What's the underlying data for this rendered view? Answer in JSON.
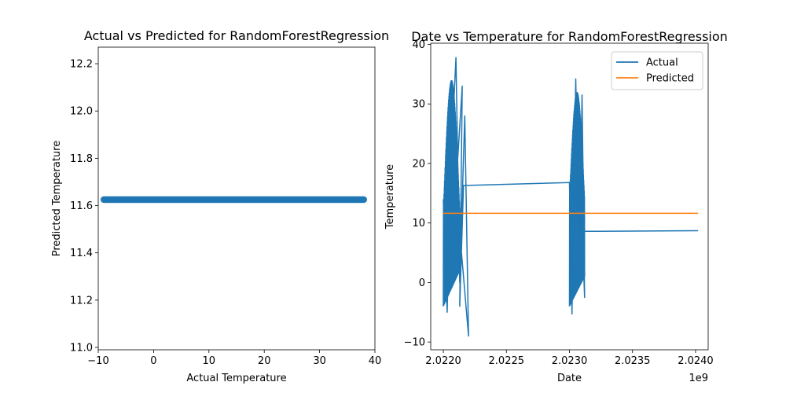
{
  "chart_data": [
    {
      "type": "scatter",
      "title": "Actual vs Predicted for RandomForestRegression",
      "xlabel": "Actual Temperature",
      "ylabel": "Predicted Temperature",
      "xlim": [
        -10,
        40
      ],
      "ylim": [
        10.99,
        12.27
      ],
      "xticks": [
        -10,
        0,
        10,
        20,
        30,
        40
      ],
      "xtick_labels": [
        "−10",
        "0",
        "10",
        "20",
        "30",
        "40"
      ],
      "yticks": [
        11.0,
        11.2,
        11.4,
        11.6,
        11.8,
        12.0,
        12.2
      ],
      "ytick_labels": [
        "11.0",
        "11.2",
        "11.4",
        "11.6",
        "11.8",
        "12.0",
        "12.2"
      ],
      "color": "#1f77b4",
      "predicted_value": 11.625,
      "actual_min": -9,
      "actual_max": 38
    },
    {
      "type": "line",
      "title": "Date vs Temperature for RandomForestRegression",
      "xlabel": "Date",
      "ylabel": "Temperature",
      "x_offset_label": "1e9",
      "xlim": [
        2.0219,
        2.0241
      ],
      "ylim": [
        -11.3,
        40.2
      ],
      "xticks": [
        2.022,
        2.0225,
        2.023,
        2.0235,
        2.024
      ],
      "xtick_labels": [
        "2.0220",
        "2.0225",
        "2.0230",
        "2.0235",
        "2.0240"
      ],
      "yticks": [
        -10,
        0,
        10,
        20,
        30,
        40
      ],
      "ytick_labels": [
        "−10",
        "0",
        "10",
        "20",
        "30",
        "40"
      ],
      "legend": {
        "location": "upper right",
        "entries": [
          "Actual",
          "Predicted"
        ]
      },
      "series": [
        {
          "name": "Actual",
          "color": "#1f77b4",
          "x": [
            2.022,
            2.02203,
            2.02206,
            2.0221,
            2.02213,
            2.02217,
            2.0222,
            2.0221,
            2.02215,
            2.02213,
            2.02216,
            2.023,
            2.02302,
            2.02305,
            2.02308,
            2.0231,
            2.02312,
            2.0231,
            2.02312,
            2.02402
          ],
          "y": [
            14,
            -5,
            20,
            37.8,
            0,
            28,
            -9,
            16,
            33,
            -4,
            16.3,
            16.8,
            -5.3,
            34.2,
            2,
            31.5,
            -2.5,
            8.6,
            8.6,
            8.7
          ]
        },
        {
          "name": "Predicted",
          "color": "#ff7f0e",
          "x": [
            2.022,
            2.02402
          ],
          "y": [
            11.63,
            11.63
          ]
        }
      ]
    }
  ]
}
